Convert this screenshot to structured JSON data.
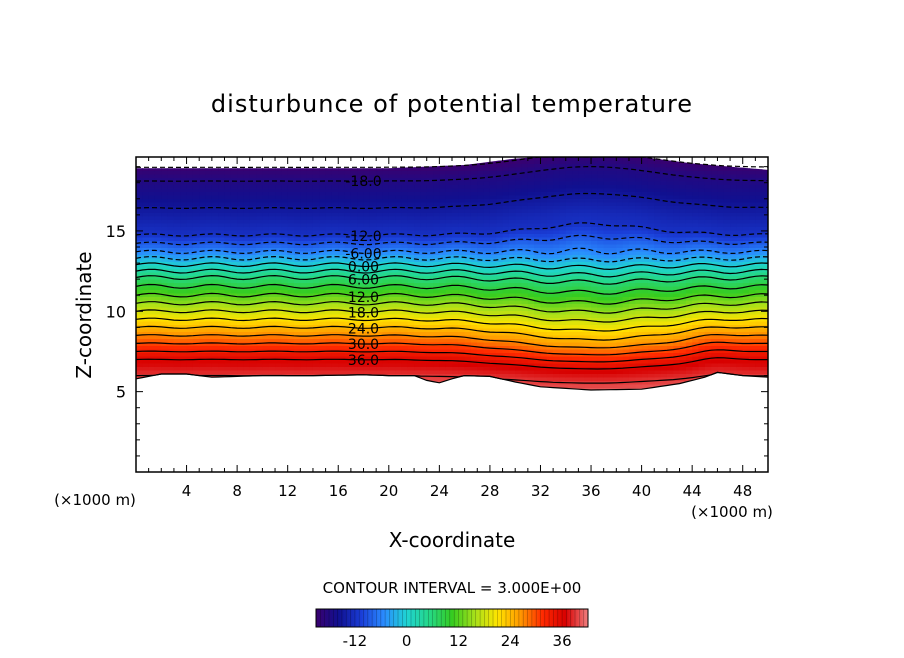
{
  "chart_data": {
    "type": "heatmap",
    "title": "disturbunce of potential temperature",
    "xlabel": "X-coordinate",
    "ylabel": "Z-coordinate",
    "x_unit_left": "(×1000 m)",
    "x_unit_right": "(×1000 m)",
    "xlim": [
      0,
      50
    ],
    "ylim": [
      0,
      19.6
    ],
    "x_ticks": [
      4,
      8,
      12,
      16,
      20,
      24,
      28,
      32,
      36,
      40,
      44,
      48
    ],
    "y_ticks": [
      5,
      10,
      15
    ],
    "contour_interval_text": "CONTOUR INTERVAL = 3.000E+00",
    "contour_interval": 3,
    "contour_labels": [
      "-18.0",
      "-12.0",
      "-6.00",
      "0.00",
      "6.00",
      "12.0",
      "18.0",
      "24.0",
      "30.0",
      "36.0"
    ],
    "contour_label_x": 18,
    "colorbar": {
      "min": -21,
      "max": 42,
      "ticks": [
        -12,
        0,
        12,
        24,
        36
      ],
      "colors": [
        "#3a006f",
        "#101090",
        "#1a3ed8",
        "#2a8cff",
        "#1fd3d3",
        "#25d887",
        "#35cc20",
        "#a6e01a",
        "#ffe400",
        "#ff9a00",
        "#ff2a00",
        "#d80000",
        "#f08080"
      ]
    },
    "terrain": {
      "x": [
        0,
        2,
        4,
        6,
        8,
        10,
        14,
        18,
        20,
        22,
        23,
        24,
        25,
        26,
        28,
        30,
        32,
        36,
        40,
        43,
        45,
        46,
        48,
        50
      ],
      "z": [
        5.8,
        6.1,
        6.1,
        5.9,
        5.95,
        6.0,
        6.0,
        6.05,
        6.0,
        6.0,
        5.7,
        5.55,
        5.8,
        6.0,
        5.95,
        5.6,
        5.3,
        5.1,
        5.15,
        5.5,
        5.9,
        6.2,
        6.0,
        5.9
      ]
    },
    "top_boundary": {
      "x": [
        0,
        10,
        20,
        26,
        30,
        34,
        36,
        40,
        44,
        50
      ],
      "z": [
        18.9,
        18.9,
        18.9,
        19.1,
        19.5,
        19.7,
        19.7,
        19.6,
        19.2,
        18.8
      ]
    },
    "isotherm_levels": [
      -18,
      -12,
      -6,
      0,
      6,
      12,
      18,
      24,
      30,
      36
    ],
    "isotherm_heights_at_x20": [
      18.1,
      14.75,
      13.7,
      12.9,
      12.1,
      11.0,
      10.0,
      9.0,
      8.0,
      7.0
    ]
  }
}
